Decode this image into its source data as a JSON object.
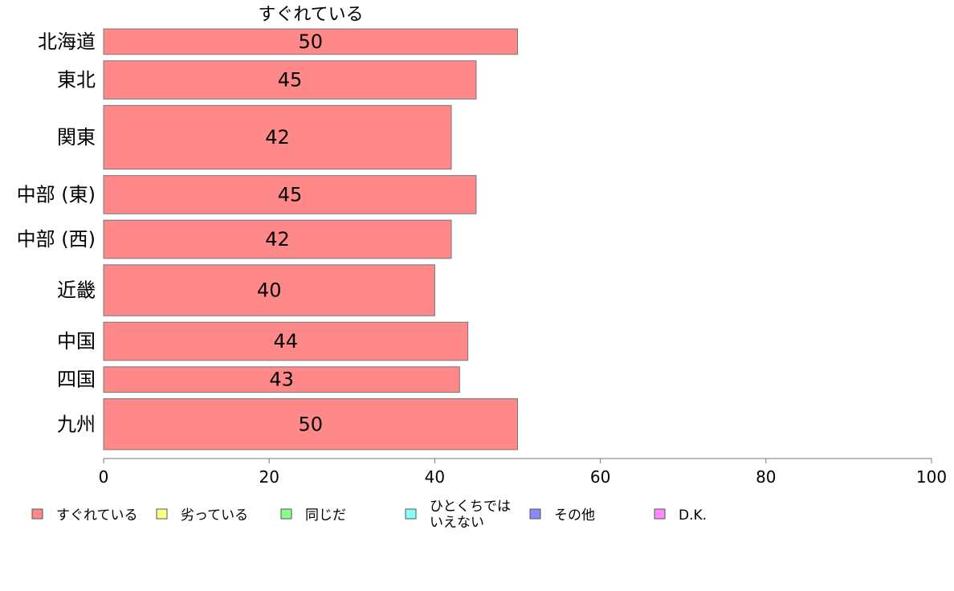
{
  "chart_data": {
    "type": "bar",
    "orientation": "horizontal",
    "title": "すぐれている",
    "categories": [
      "北海道",
      "東北",
      "関東",
      "中部 (東)",
      "中部 (西)",
      "近畿",
      "中国",
      "四国",
      "九州"
    ],
    "series": [
      {
        "name": "すぐれている",
        "color": "#ff8888",
        "values": [
          50,
          45,
          42,
          45,
          42,
          40,
          44,
          43,
          50
        ],
        "value_labels": [
          "50",
          "45",
          "42",
          "45",
          "42",
          "40",
          "44",
          "43",
          "50"
        ]
      }
    ],
    "bar_weights": [
      2,
      3,
      5,
      3,
      3,
      4,
      3,
      2,
      4
    ],
    "xlim": [
      0,
      100
    ],
    "x_ticks": [
      0,
      20,
      40,
      60,
      80,
      100
    ],
    "x_tick_labels": [
      "0",
      "20",
      "40",
      "60",
      "80",
      "100"
    ],
    "grid": false,
    "legend": {
      "placement": "bottom",
      "entries": [
        {
          "label": "すぐれている",
          "color": "#ff8888"
        },
        {
          "label": "劣っている",
          "color": "#ffff88"
        },
        {
          "label": "同じだ",
          "color": "#88ff88"
        },
        {
          "label": "ひとくちでは\nいえない",
          "color": "#88ffff"
        },
        {
          "label": "その他",
          "color": "#8888ff"
        },
        {
          "label": "D.K.",
          "color": "#ff88ff"
        }
      ]
    }
  }
}
